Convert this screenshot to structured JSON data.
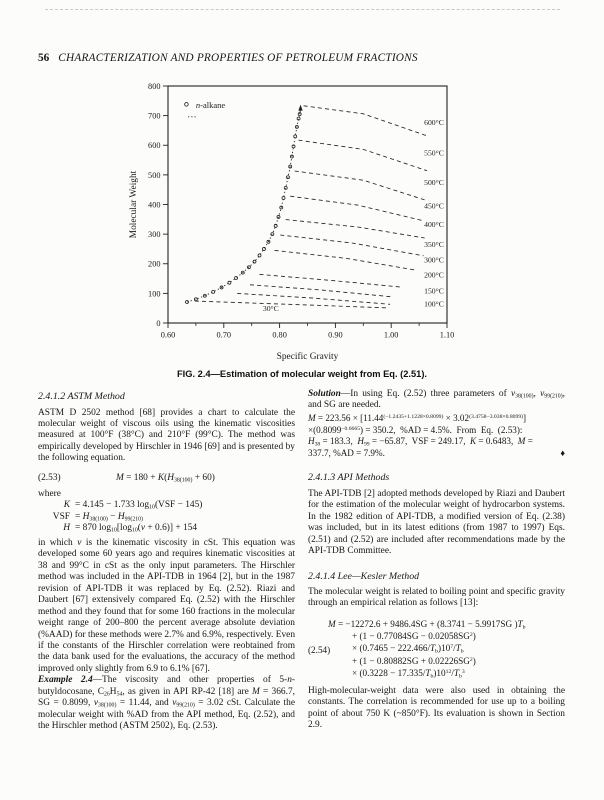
{
  "page": {
    "number": "56",
    "running_title": "CHARACTERIZATION AND PROPERTIES OF PETROLEUM FRACTIONS"
  },
  "figure": {
    "caption": "FIG. 2.4—Estimation of molecular weight from Eq. (2.51).",
    "chart_data": {
      "type": "line",
      "title": "",
      "xlabel": "Specific Gravity",
      "ylabel": "Molecular Weight",
      "xlim": [
        0.6,
        1.1
      ],
      "ylim": [
        0,
        800
      ],
      "xticks": [
        "0.60",
        "0.70",
        "0.80",
        "0.90",
        "1.00",
        "1.10"
      ],
      "xticks_minor": [
        0.65,
        0.75,
        0.85,
        0.95,
        1.05
      ],
      "yticks": [
        0,
        100,
        200,
        300,
        400,
        500,
        600,
        700,
        800
      ],
      "grid": false,
      "legend": {
        "label": "n-alkane",
        "marker": "open-circle",
        "position": "inside-top-left",
        "circle_at": [
          0.633,
          738
        ],
        "text_at": [
          0.65,
          735
        ],
        "dash_at": [
          0.636,
          696
        ]
      },
      "series": {
        "nalkane": {
          "name": "n-alkane",
          "style": "dotted-with-markers",
          "points": [
            [
              0.634,
              71
            ],
            [
              0.65,
              80
            ],
            [
              0.666,
              92
            ],
            [
              0.681,
              105
            ],
            [
              0.696,
              120
            ],
            [
              0.71,
              136
            ],
            [
              0.722,
              152
            ],
            [
              0.734,
              170
            ],
            [
              0.745,
              188
            ],
            [
              0.755,
              207
            ],
            [
              0.764,
              228
            ],
            [
              0.772,
              250
            ],
            [
              0.78,
              274
            ],
            [
              0.787,
              300
            ],
            [
              0.793,
              328
            ],
            [
              0.798,
              358
            ],
            [
              0.803,
              390
            ],
            [
              0.807,
              422
            ],
            [
              0.811,
              456
            ],
            [
              0.815,
              492
            ],
            [
              0.819,
              528
            ],
            [
              0.822,
              562
            ],
            [
              0.825,
              596
            ],
            [
              0.828,
              630
            ],
            [
              0.831,
              662
            ],
            [
              0.834,
              690
            ],
            [
              0.836,
              705
            ]
          ],
          "arrow_tip": [
            0.8375,
            722
          ]
        },
        "isotherms": [
          {
            "label": "600°C",
            "style": "dashed",
            "points": [
              [
                0.843,
                733
              ],
              [
                0.95,
                706
              ],
              [
                1.064,
                632
              ]
            ],
            "label_at": [
              1.059,
              668
            ]
          },
          {
            "label": "550°C",
            "style": "dashed",
            "points": [
              [
                0.834,
                617
              ],
              [
                0.95,
                586
              ],
              [
                1.064,
                514
              ]
            ],
            "label_at": [
              1.059,
              566
            ]
          },
          {
            "label": "500°C",
            "style": "dashed",
            "points": [
              [
                0.827,
                513
              ],
              [
                0.95,
                482
              ],
              [
                1.064,
                413
              ]
            ],
            "label_at": [
              1.059,
              465
            ]
          },
          {
            "label": "450°C",
            "style": "dashed",
            "points": [
              [
                0.819,
                428
              ],
              [
                0.94,
                398
              ],
              [
                1.058,
                345
              ]
            ],
            "label_at": [
              1.059,
              386
            ]
          },
          {
            "label": "400°C",
            "style": "dashed",
            "points": [
              [
                0.811,
                349
              ],
              [
                0.94,
                324
              ],
              [
                1.06,
                287
              ]
            ],
            "label_at": [
              1.059,
              324
            ]
          },
          {
            "label": "350°C",
            "style": "dashed",
            "points": [
              [
                0.801,
                297
              ],
              [
                0.93,
                270
              ],
              [
                1.058,
                227
              ]
            ],
            "label_at": [
              1.059,
              256
            ]
          },
          {
            "label": "300°C",
            "style": "dashed",
            "points": [
              [
                0.791,
                245
              ],
              [
                0.92,
                218
              ],
              [
                1.046,
                178
              ]
            ],
            "label_at": [
              1.059,
              205
            ]
          },
          {
            "label": "200°C",
            "style": "dashed",
            "points": [
              [
                0.764,
                164
              ],
              [
                0.89,
                144
              ],
              [
                1.02,
                121
              ]
            ],
            "label_at": [
              1.059,
              154
            ]
          },
          {
            "label": "150°C",
            "style": "dashed",
            "points": [
              [
                0.747,
                129
              ],
              [
                0.87,
                112
              ],
              [
                1.003,
                88
              ]
            ],
            "label_at": [
              1.059,
              100
            ]
          },
          {
            "label": "100°C",
            "style": "dashed",
            "points": [
              [
                0.724,
                100
              ],
              [
                0.86,
                84
              ],
              [
                0.998,
                63
              ]
            ],
            "label_at": [
              1.059,
              56
            ]
          },
          {
            "label": "30°C",
            "style": "dashed",
            "points": [
              [
                0.648,
                74
              ],
              [
                0.8,
                64
              ],
              [
                0.995,
                51
              ]
            ],
            "label_at": [
              0.77,
              41
            ]
          }
        ]
      }
    }
  },
  "left_column": {
    "astm": {
      "heading": "2.4.1.2 ASTM Method",
      "para1": "ASTM D 2502 method [68] provides a chart to calculate the molecular weight of viscous oils using the kinematic viscosities measured at 100°F (38°C) and 210°F (99°C). The method was empirically developed by Hirschler in 1946 [69] and is presented by the following equation.",
      "eq253_label": "(2.53)",
      "eq253": "<i>M</i> = 180 + <i>K</i>(<i>H</i><sub>38(100)</sub> + 60)",
      "where_word": "where",
      "where_lines": [
        {
          "lhs": "<i>K</i>",
          "rhs": "= 4.145 − 1.733 log<sub>10</sub>(VSF − 145)"
        },
        {
          "lhs": "VSF",
          "rhs": "= <i>H</i><sub>38(100)</sub> − <i>H</i><sub>99(210)</sub>"
        },
        {
          "lhs": "<i>H</i>",
          "rhs": "= 870 log<sub>10</sub>[log<sub>10</sub>(<i>v</i> + 0.6)] + 154"
        }
      ],
      "para2": "in which <i>v</i> is the kinematic viscosity in cSt. This equation was developed some 60 years ago and requires kinematic viscosities at 38 and 99°C in cSt as the only input parameters. The Hirschler method was included in the API-TDB in 1964 [2], but in the 1987 revision of API-TDB it was replaced by Eq. (2.52). Riazi and Daubert [67] extensively compared Eq. (2.52) with the Hirschler method and they found that for some 160 fractions in the molecular weight range of 200–800 the percent average absolute deviation (%AAD) for these methods were 2.7% and 6.9%, respectively. Even if the constants of the Hirschler correlation were reobtained from the data bank used for the evaluations, the accuracy of the method improved only slightly from 6.9 to 6.1% [67]."
    },
    "example": {
      "para": "<b><i>Example 2.4</i></b>—The viscosity and other properties of 5-<i>n</i>-butyldocosane, C<sub>26</sub>H<sub>54</sub>, as given in API RP-42 [18] are <i>M</i> = 366.7, SG = 0.8099, <i>v</i><sub>38(100)</sub> = 11.44, and <i>v</i><sub>99(210)</sub> = 3.02 cSt. Calculate the molecular weight with %AD from the API method, Eq. (2.52), and the Hirschler method (ASTM 2502), Eq. (2.53)."
    }
  },
  "right_column": {
    "solution": {
      "para": "<b><i>Solution</i></b>—In using Eq. (2.52) three parameters of <i>v</i><sub>38(100)</sub>, <i>v</i><sub>99(210)</sub>, and SG are needed.",
      "calc_lines": [
        "<i>M</i> = 223.56 × [11.44<sup>(−1.2435+1.1228×0.8099)</sup> × 3.02<sup>(3.4758−3.038×0.8099)</sup>]",
        "×(0.8099<sup>−0.6665</sup>) = 350.2,&nbsp; %AD = 4.5%.&nbsp; From&nbsp; Eq.&nbsp; (2.53):",
        "<i>H</i><sub>38</sub> = 183.3,&nbsp; <i>H</i><sub>99</sub> = −65.87,&nbsp; VSF = 249.17,&nbsp; <i>K</i> = 0.6483,&nbsp; <i>M</i> =",
        "337.7, %AD = 7.9%."
      ],
      "end_mark": "♦"
    },
    "api": {
      "heading": "2.4.1.3 API Methods",
      "para": "The API-TDB [2] adopted methods developed by Riazi and Daubert for the estimation of the molecular weight of hydrocarbon systems. In the 1982 edition of API-TDB, a modified version of Eq. (2.38) was included, but in its latest editions (from 1987 to 1997) Eqs. (2.51) and (2.52) are included after recommendations made by the API-TDB Committee."
    },
    "leekesler": {
      "heading": "2.4.1.4 Lee—Kesler Method",
      "intro": "The molecular weight is related to boiling point and specific gravity through an empirical relation as follows [13]:",
      "eq254_label": "(2.54)",
      "eq254_lines": [
        "<i>M</i> = −12272.6 + 9486.4SG + (8.3741 − 5.9917SG )<i>T</i><sub>b</sub>",
        "+ (1 − 0.77084SG − 0.02058SG<sup>2</sup>)",
        "× (0.7465 − 222.466/<i>T</i><sub>b</sub>)10<sup>7</sup>/<i>T</i><sub>b</sub>",
        "+ (1 − 0.80882SG + 0.02226SG<sup>2</sup>)",
        "× (0.3228 − 17.335/<i>T</i><sub>b</sub>)10<sup>12</sup>/<i>T</i><sub>b</sub><sup>3</sup>"
      ],
      "note": "High-molecular-weight data were also used in obtaining the constants. The correlation is recommended for use up to a boiling point of about 750 K (~850°F). Its evaluation is shown in Section 2.9."
    }
  }
}
